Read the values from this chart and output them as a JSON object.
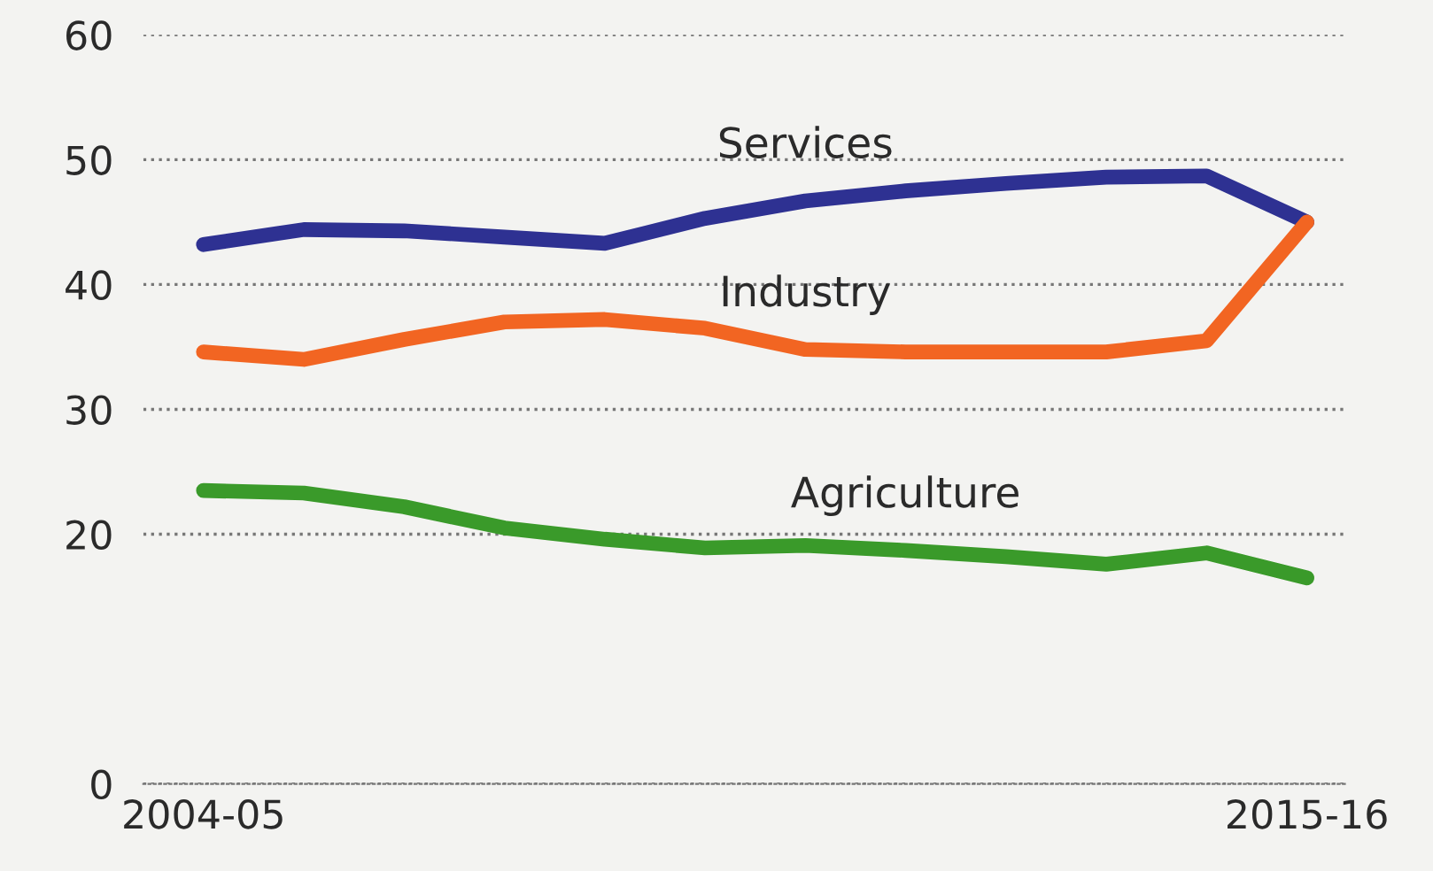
{
  "chart_data": {
    "type": "line",
    "categories": [
      "2004-05",
      null,
      null,
      null,
      null,
      null,
      null,
      null,
      null,
      null,
      null,
      "2015-16"
    ],
    "series": [
      {
        "name": "Services",
        "color": "#2e3192",
        "values": [
          43.2,
          44.4,
          44.3,
          43.8,
          43.3,
          45.3,
          46.7,
          47.5,
          48.1,
          48.6,
          48.7,
          45.0
        ]
      },
      {
        "name": "Industry",
        "color": "#f26522",
        "values": [
          34.6,
          34.0,
          35.6,
          37.0,
          37.2,
          36.5,
          34.8,
          34.6,
          34.6,
          34.6,
          35.5,
          45.0
        ]
      },
      {
        "name": "Agriculture",
        "color": "#3a9a2a",
        "values": [
          23.5,
          23.3,
          22.2,
          20.5,
          19.6,
          18.9,
          19.1,
          18.7,
          18.2,
          17.6,
          18.5,
          16.5
        ]
      }
    ],
    "ylim": [
      0,
      60
    ],
    "yticks": [
      0,
      20,
      30,
      40,
      50,
      60
    ],
    "grid": "y",
    "legend": false,
    "marker": "none",
    "line_style": "solid"
  }
}
